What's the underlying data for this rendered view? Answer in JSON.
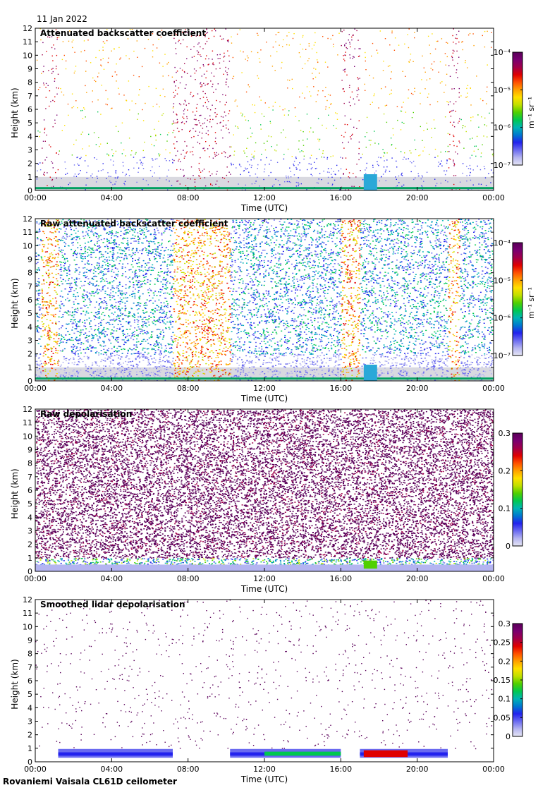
{
  "date_label": "11 Jan 2022",
  "footer": "Rovaniemi Vaisala CL61D ceilometer",
  "chart_data": [
    {
      "type": "heatmap",
      "title": "Attenuated backscatter coefficient",
      "xlabel": "Time (UTC)",
      "ylabel": "Height (km)",
      "xticks": [
        "00:00",
        "04:00",
        "08:00",
        "12:00",
        "16:00",
        "20:00",
        "00:00"
      ],
      "yticks": [
        0,
        1,
        2,
        3,
        4,
        5,
        6,
        7,
        8,
        9,
        10,
        11,
        12
      ],
      "ylim": [
        0,
        12
      ],
      "xlim_hours": [
        0,
        24
      ],
      "colorbar": {
        "scale": "log",
        "ticks": [
          "10⁻⁷",
          "10⁻⁶",
          "10⁻⁵",
          "10⁻⁴"
        ],
        "unit": "m⁻¹ sr⁻¹"
      }
    },
    {
      "type": "heatmap",
      "title": "Raw attenuated backscatter coefficient",
      "xlabel": "Time (UTC)",
      "ylabel": "Height (km)",
      "xticks": [
        "00:00",
        "04:00",
        "08:00",
        "12:00",
        "16:00",
        "20:00",
        "00:00"
      ],
      "yticks": [
        0,
        1,
        2,
        3,
        4,
        5,
        6,
        7,
        8,
        9,
        10,
        11,
        12
      ],
      "ylim": [
        0,
        12
      ],
      "xlim_hours": [
        0,
        24
      ],
      "colorbar": {
        "scale": "log",
        "ticks": [
          "10⁻⁷",
          "10⁻⁶",
          "10⁻⁵",
          "10⁻⁴"
        ],
        "unit": "m⁻¹ sr⁻¹"
      }
    },
    {
      "type": "heatmap",
      "title": "Raw depolarisation",
      "xlabel": "Time (UTC)",
      "ylabel": "Height (km)",
      "xticks": [
        "00:00",
        "04:00",
        "08:00",
        "12:00",
        "16:00",
        "20:00",
        "00:00"
      ],
      "yticks": [
        0,
        1,
        2,
        3,
        4,
        5,
        6,
        7,
        8,
        9,
        10,
        11,
        12
      ],
      "ylim": [
        0,
        12
      ],
      "xlim_hours": [
        0,
        24
      ],
      "colorbar": {
        "scale": "linear",
        "ticks": [
          "0",
          "0.1",
          "0.2",
          "0.3"
        ],
        "unit": ""
      }
    },
    {
      "type": "heatmap",
      "title": "Smoothed lidar depolarisation",
      "xlabel": "Time (UTC)",
      "ylabel": "Height (km)",
      "xticks": [
        "00:00",
        "04:00",
        "08:00",
        "12:00",
        "16:00",
        "20:00",
        "00:00"
      ],
      "yticks": [
        0,
        1,
        2,
        3,
        4,
        5,
        6,
        7,
        8,
        9,
        10,
        11,
        12
      ],
      "ylim": [
        0,
        12
      ],
      "xlim_hours": [
        0,
        24
      ],
      "colorbar": {
        "scale": "linear",
        "ticks": [
          "0",
          "0.05",
          "0.1",
          "0.15",
          "0.2",
          "0.25",
          "0.3"
        ],
        "unit": ""
      }
    }
  ]
}
